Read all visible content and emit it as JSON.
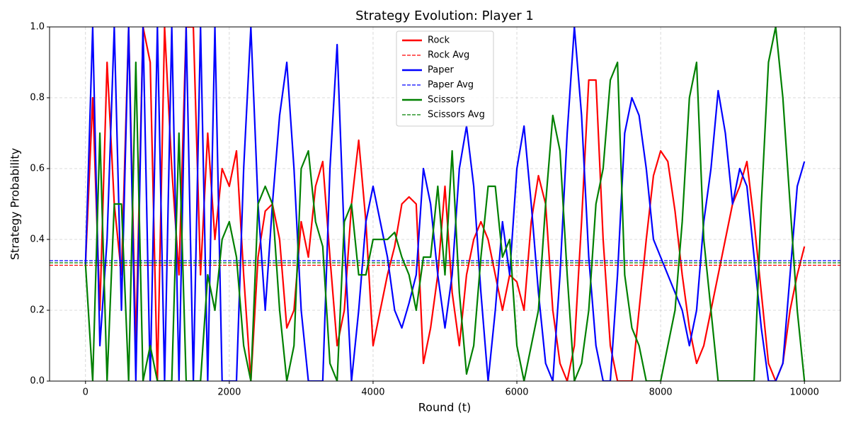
{
  "chart_data": {
    "type": "line",
    "title": "Strategy Evolution: Player 1",
    "xlabel": "Round (t)",
    "ylabel": "Strategy Probability",
    "xlim": [
      -500,
      10500
    ],
    "ylim": [
      0,
      1
    ],
    "xticks": [
      0,
      2000,
      4000,
      6000,
      8000,
      10000
    ],
    "yticks": [
      {
        "value": 0,
        "label": "0.0"
      },
      0.2,
      0.4,
      0.6,
      0.8,
      {
        "value": 1,
        "label": "1.0"
      }
    ],
    "grid": true,
    "legend": "upper center",
    "x": [
      0,
      100,
      200,
      300,
      400,
      500,
      600,
      700,
      800,
      900,
      1000,
      1100,
      1200,
      1300,
      1400,
      1500,
      1600,
      1700,
      1800,
      1900,
      2000,
      2100,
      2200,
      2300,
      2400,
      2500,
      2600,
      2700,
      2800,
      2900,
      3000,
      3100,
      3200,
      3300,
      3400,
      3500,
      3600,
      3700,
      3800,
      3900,
      4000,
      4100,
      4200,
      4300,
      4400,
      4500,
      4600,
      4700,
      4800,
      4900,
      5000,
      5100,
      5200,
      5300,
      5400,
      5500,
      5600,
      5700,
      5800,
      5900,
      6000,
      6100,
      6200,
      6300,
      6400,
      6500,
      6600,
      6700,
      6800,
      6900,
      7000,
      7100,
      7200,
      7300,
      7400,
      7500,
      7600,
      7700,
      7800,
      7900,
      8000,
      8100,
      8200,
      8300,
      8400,
      8500,
      8600,
      8700,
      8800,
      8900,
      9000,
      9100,
      9200,
      9300,
      9400,
      9500,
      9600,
      9700,
      9800,
      9900,
      10000
    ],
    "series": [
      {
        "name": "Rock",
        "color": "#ff0000",
        "style": "solid",
        "values": [
          0.33,
          0.8,
          0.2,
          0.9,
          0.5,
          0.3,
          1,
          0.1,
          1,
          0.9,
          0,
          1,
          0.6,
          0.3,
          1,
          1,
          0.3,
          0.7,
          0.4,
          0.6,
          0.55,
          0.65,
          0.3,
          0,
          0.35,
          0.48,
          0.5,
          0.4,
          0.15,
          0.2,
          0.45,
          0.35,
          0.55,
          0.62,
          0.35,
          0.1,
          0.2,
          0.5,
          0.68,
          0.45,
          0.1,
          0.2,
          0.3,
          0.38,
          0.5,
          0.52,
          0.5,
          0.05,
          0.15,
          0.3,
          0.55,
          0.25,
          0.1,
          0.3,
          0.4,
          0.45,
          0.4,
          0.3,
          0.2,
          0.3,
          0.28,
          0.2,
          0.45,
          0.58,
          0.5,
          0.2,
          0.05,
          0,
          0.1,
          0.45,
          0.85,
          0.85,
          0.4,
          0.1,
          0,
          0,
          0,
          0.2,
          0.4,
          0.58,
          0.65,
          0.62,
          0.48,
          0.3,
          0.15,
          0.05,
          0.1,
          0.2,
          0.3,
          0.4,
          0.5,
          0.55,
          0.62,
          0.45,
          0.25,
          0.05,
          0,
          0.05,
          0.2,
          0.3,
          0.38
        ]
      },
      {
        "name": "Rock Avg",
        "color": "#ff0000",
        "style": "dashed",
        "value": 0.327
      },
      {
        "name": "Paper",
        "color": "#0000ff",
        "style": "solid",
        "values": [
          0.33,
          1,
          0.1,
          0.4,
          1,
          0.2,
          1,
          0,
          1,
          0,
          1,
          0,
          1,
          0,
          1,
          0,
          1,
          0,
          1,
          0,
          0,
          0,
          0.6,
          1,
          0.5,
          0.2,
          0.5,
          0.75,
          0.9,
          0.6,
          0.2,
          0,
          0,
          0,
          0.6,
          0.95,
          0.4,
          0,
          0.2,
          0.45,
          0.55,
          0.45,
          0.35,
          0.2,
          0.15,
          0.22,
          0.3,
          0.6,
          0.5,
          0.3,
          0.15,
          0.3,
          0.6,
          0.72,
          0.55,
          0.25,
          0,
          0.2,
          0.45,
          0.3,
          0.6,
          0.72,
          0.5,
          0.25,
          0.05,
          0,
          0.3,
          0.7,
          1,
          0.75,
          0.35,
          0.1,
          0,
          0,
          0.3,
          0.7,
          0.8,
          0.75,
          0.6,
          0.4,
          0.35,
          0.3,
          0.25,
          0.2,
          0.1,
          0.2,
          0.45,
          0.6,
          0.82,
          0.7,
          0.5,
          0.6,
          0.55,
          0.35,
          0.15,
          0,
          0,
          0.05,
          0.3,
          0.55,
          0.62
        ]
      },
      {
        "name": "Paper Avg",
        "color": "#0000ff",
        "style": "dashed",
        "value": 0.34
      },
      {
        "name": "Scissors",
        "color": "#008000",
        "style": "solid",
        "values": [
          0.33,
          0,
          0.7,
          0,
          0.5,
          0.5,
          0,
          0.9,
          0,
          0.1,
          0,
          0,
          0,
          0.7,
          0,
          0,
          0,
          0.3,
          0.2,
          0.4,
          0.45,
          0.35,
          0.1,
          0,
          0.5,
          0.55,
          0.5,
          0.2,
          0,
          0.1,
          0.6,
          0.65,
          0.45,
          0.38,
          0.05,
          0,
          0.45,
          0.5,
          0.3,
          0.3,
          0.4,
          0.4,
          0.4,
          0.42,
          0.35,
          0.3,
          0.2,
          0.35,
          0.35,
          0.55,
          0.3,
          0.65,
          0.25,
          0.02,
          0.1,
          0.35,
          0.55,
          0.55,
          0.35,
          0.4,
          0.1,
          0,
          0.1,
          0.2,
          0.5,
          0.75,
          0.65,
          0.3,
          0,
          0.05,
          0.2,
          0.5,
          0.6,
          0.85,
          0.9,
          0.3,
          0.15,
          0.1,
          0,
          0,
          0,
          0.1,
          0.2,
          0.45,
          0.8,
          0.9,
          0.4,
          0.2,
          0,
          0,
          0,
          0,
          0,
          0,
          0.5,
          0.9,
          1,
          0.8,
          0.5,
          0.2,
          0
        ]
      },
      {
        "name": "Scissors Avg",
        "color": "#008000",
        "style": "dashed",
        "value": 0.334
      }
    ]
  }
}
